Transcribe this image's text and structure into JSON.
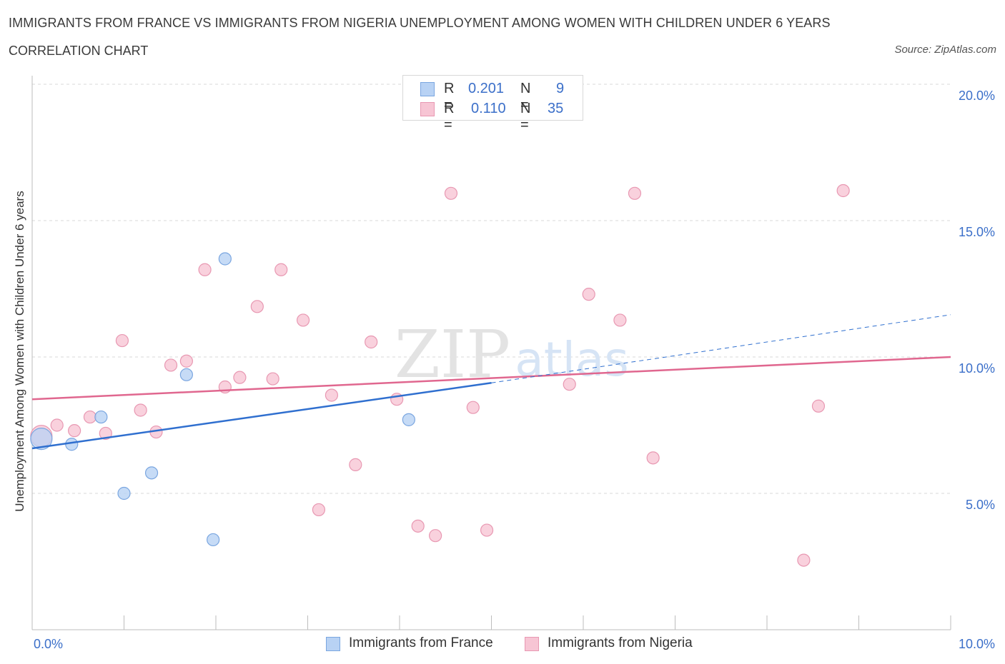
{
  "header": {
    "title": "IMMIGRANTS FROM FRANCE VS IMMIGRANTS FROM NIGERIA UNEMPLOYMENT AMONG WOMEN WITH CHILDREN UNDER 6 YEARS",
    "subtitle": "CORRELATION CHART",
    "source": "Source: ZipAtlas.com"
  },
  "watermark": {
    "zip": "ZIP",
    "atlas": "atlas"
  },
  "legend": {
    "r_label": "R =",
    "n_label": "N =",
    "france": {
      "r": "0.201",
      "n": "9",
      "name": "Immigrants from France"
    },
    "nigeria": {
      "r": "0.110",
      "n": "35",
      "name": "Immigrants from Nigeria"
    }
  },
  "colors": {
    "france_fill": "#b8d2f4",
    "france_stroke": "#7aa6e0",
    "france_line": "#2f6fcf",
    "nigeria_fill": "#f7c5d4",
    "nigeria_stroke": "#e898b2",
    "nigeria_line": "#e0678f",
    "tick_label": "#3b6fc9",
    "grid": "#d9d9d9"
  },
  "chart_data": {
    "type": "scatter",
    "title": "IMMIGRANTS FROM FRANCE VS IMMIGRANTS FROM NIGERIA UNEMPLOYMENT AMONG WOMEN WITH CHILDREN UNDER 6 YEARS",
    "xlabel": "",
    "ylabel": "Unemployment Among Women with Children Under 6 years",
    "xlim": [
      0,
      10
    ],
    "ylim": [
      0,
      20
    ],
    "x_tick_labels": [
      {
        "value": 0,
        "label": "0.0%"
      },
      {
        "value": 10,
        "label": "10.0%"
      }
    ],
    "y_tick_labels": [
      {
        "value": 5,
        "label": "5.0%"
      },
      {
        "value": 10,
        "label": "10.0%"
      },
      {
        "value": 15,
        "label": "15.0%"
      },
      {
        "value": 20,
        "label": "20.0%"
      }
    ],
    "grid": true,
    "series": [
      {
        "name": "Immigrants from France",
        "points": [
          {
            "x": 0.1,
            "y": 7.0,
            "big": true
          },
          {
            "x": 0.43,
            "y": 6.8
          },
          {
            "x": 0.75,
            "y": 7.8
          },
          {
            "x": 1.0,
            "y": 5.0
          },
          {
            "x": 1.3,
            "y": 5.75
          },
          {
            "x": 1.68,
            "y": 9.35
          },
          {
            "x": 1.97,
            "y": 3.3
          },
          {
            "x": 2.1,
            "y": 13.6
          },
          {
            "x": 4.1,
            "y": 7.7
          }
        ],
        "trend": {
          "x0": 0.0,
          "y0": 6.65,
          "x1": 5.0,
          "y1": 9.05,
          "dash_x1": 10.0,
          "dash_y1": 11.55
        }
      },
      {
        "name": "Immigrants from Nigeria",
        "points": [
          {
            "x": 0.1,
            "y": 7.1,
            "big": true
          },
          {
            "x": 0.27,
            "y": 7.5
          },
          {
            "x": 0.46,
            "y": 7.3
          },
          {
            "x": 0.63,
            "y": 7.8
          },
          {
            "x": 0.8,
            "y": 7.2
          },
          {
            "x": 0.98,
            "y": 10.6
          },
          {
            "x": 1.18,
            "y": 8.05
          },
          {
            "x": 1.35,
            "y": 7.25
          },
          {
            "x": 1.51,
            "y": 9.7
          },
          {
            "x": 1.68,
            "y": 9.85
          },
          {
            "x": 1.88,
            "y": 13.2
          },
          {
            "x": 2.1,
            "y": 8.9
          },
          {
            "x": 2.26,
            "y": 9.25
          },
          {
            "x": 2.45,
            "y": 11.85
          },
          {
            "x": 2.62,
            "y": 9.2
          },
          {
            "x": 2.71,
            "y": 13.2
          },
          {
            "x": 2.95,
            "y": 11.35
          },
          {
            "x": 3.12,
            "y": 4.4
          },
          {
            "x": 3.26,
            "y": 8.6
          },
          {
            "x": 3.52,
            "y": 6.05
          },
          {
            "x": 3.69,
            "y": 10.55
          },
          {
            "x": 3.97,
            "y": 8.45
          },
          {
            "x": 4.2,
            "y": 3.8
          },
          {
            "x": 4.39,
            "y": 3.45
          },
          {
            "x": 4.56,
            "y": 16.0
          },
          {
            "x": 4.8,
            "y": 8.15
          },
          {
            "x": 4.95,
            "y": 3.65
          },
          {
            "x": 5.85,
            "y": 9.0
          },
          {
            "x": 6.06,
            "y": 12.3
          },
          {
            "x": 6.4,
            "y": 11.35
          },
          {
            "x": 6.56,
            "y": 16.0
          },
          {
            "x": 6.76,
            "y": 6.3
          },
          {
            "x": 8.4,
            "y": 2.55
          },
          {
            "x": 8.56,
            "y": 8.2
          },
          {
            "x": 8.83,
            "y": 16.1
          }
        ],
        "trend": {
          "x0": 0.0,
          "y0": 8.45,
          "x1": 10.0,
          "y1": 10.0
        }
      }
    ]
  }
}
